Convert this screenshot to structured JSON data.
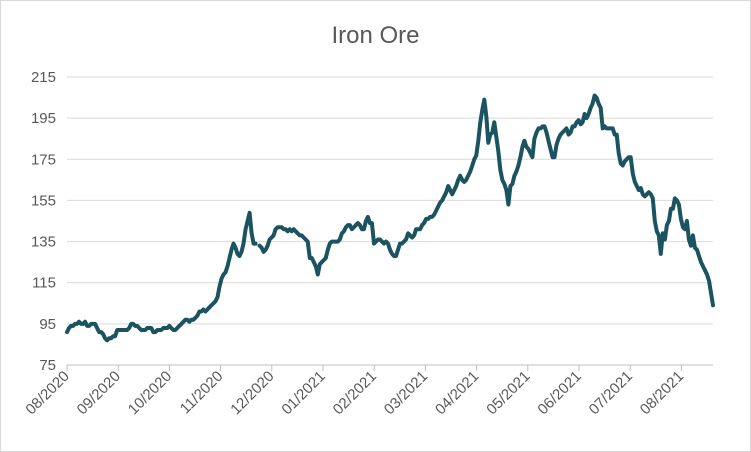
{
  "chart_data": {
    "type": "line",
    "title": "Iron Ore",
    "xlabel": "",
    "ylabel": "",
    "ylim": [
      75,
      215
    ],
    "yticks": [
      75,
      95,
      115,
      135,
      155,
      175,
      195,
      215
    ],
    "xticks": [
      "08/2020",
      "09/2020",
      "10/2020",
      "11/2020",
      "12/2020",
      "01/2021",
      "02/2021",
      "03/2021",
      "04/2021",
      "05/2021",
      "06/2021",
      "07/2021",
      "08/2021"
    ],
    "grid": "horizontal",
    "legend": "none",
    "color": "#1b5460",
    "series": [
      {
        "values": [
          91,
          93,
          94,
          94,
          95,
          95,
          96,
          95,
          95,
          96,
          94,
          94,
          95,
          95,
          95,
          93,
          91,
          91,
          90,
          88,
          87,
          88,
          88,
          89,
          89,
          92,
          92,
          92,
          92,
          92,
          92,
          93,
          95,
          95,
          94,
          94,
          93,
          92,
          92,
          92,
          93,
          93,
          93,
          91,
          91,
          92,
          92,
          92,
          93,
          93,
          93,
          94,
          93,
          92,
          92,
          93,
          94,
          95,
          96,
          97,
          97,
          96,
          97,
          97,
          98,
          99,
          101,
          101,
          102,
          101,
          102,
          103,
          104,
          105,
          106,
          108,
          113,
          117,
          119,
          120,
          123,
          127,
          131,
          134,
          132,
          129,
          128,
          130,
          134,
          141,
          145,
          149,
          139,
          134,
          134,
          null,
          133,
          132,
          130,
          131,
          133,
          136,
          137,
          138,
          141,
          142,
          142,
          142,
          141,
          141,
          140,
          141,
          140,
          141,
          140,
          139,
          138,
          138,
          137,
          136,
          135,
          127,
          127,
          125,
          123,
          119,
          124,
          125,
          126,
          127,
          131,
          134,
          135,
          135,
          135,
          135,
          136,
          139,
          140,
          142,
          143,
          143,
          141,
          142,
          143,
          144,
          143,
          141,
          141,
          145,
          147,
          144,
          144,
          134,
          135,
          136,
          136,
          135,
          134,
          135,
          134,
          131,
          129,
          128,
          128,
          131,
          134,
          134,
          135,
          136,
          139,
          138,
          137,
          138,
          141,
          141,
          141,
          143,
          144,
          146,
          146,
          147,
          147,
          148,
          150,
          152,
          154,
          155,
          157,
          159,
          162,
          160,
          158,
          160,
          162,
          165,
          167,
          165,
          164,
          165,
          167,
          169,
          172,
          175,
          177,
          184,
          193,
          199,
          204,
          196,
          183,
          187,
          188,
          193,
          186,
          179,
          170,
          165,
          163,
          160,
          153,
          162,
          163,
          167,
          169,
          172,
          176,
          181,
          184,
          181,
          180,
          178,
          176,
          185,
          188,
          190,
          190,
          191,
          191,
          188,
          184,
          180,
          176,
          176,
          182,
          185,
          187,
          188,
          189,
          190,
          187,
          188,
          191,
          191,
          193,
          194,
          192,
          193,
          197,
          195,
          197,
          200,
          202,
          206,
          205,
          202,
          200,
          190,
          191,
          190,
          190,
          190,
          190,
          187,
          187,
          178,
          173,
          172,
          174,
          175,
          176,
          176,
          168,
          164,
          162,
          160,
          161,
          158,
          157,
          158,
          159,
          158,
          156,
          145,
          140,
          138,
          129,
          139,
          136,
          143,
          145,
          151,
          151,
          156,
          155,
          153,
          146,
          142,
          141,
          145,
          136,
          133,
          138,
          132,
          131,
          128,
          125,
          123,
          121,
          119,
          116,
          110,
          104
        ]
      }
    ]
  }
}
